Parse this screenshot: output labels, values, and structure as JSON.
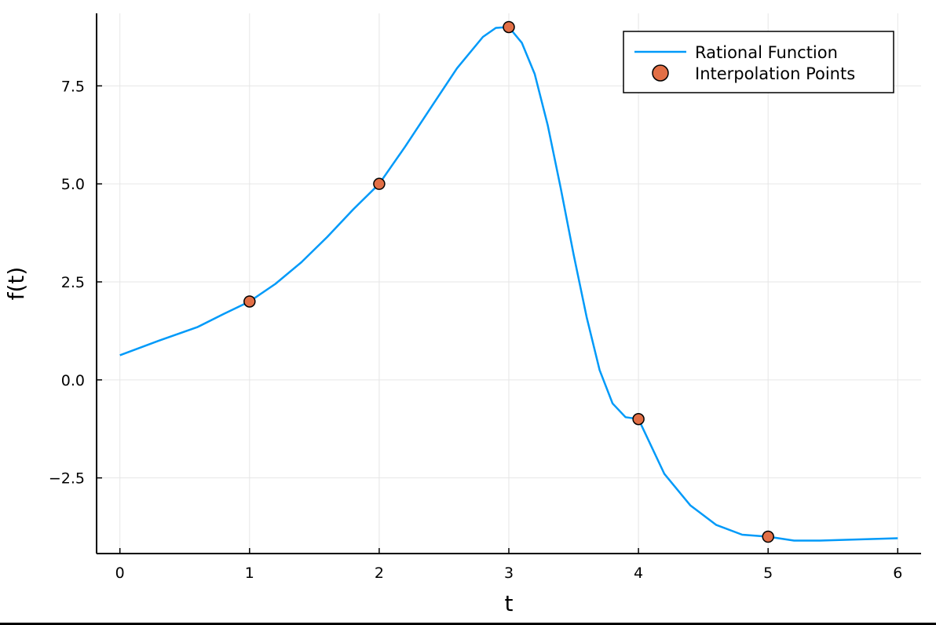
{
  "chart_data": {
    "type": "line",
    "title": "",
    "xlabel": "t",
    "ylabel": "f(t)",
    "xlim": [
      -0.18,
      6.18
    ],
    "ylim": [
      -4.43,
      9.35
    ],
    "grid": true,
    "legend_position": "top-right",
    "x_ticks": [
      0,
      1,
      2,
      3,
      4,
      5,
      6
    ],
    "x_tick_labels": [
      "0",
      "1",
      "2",
      "3",
      "4",
      "5",
      "6"
    ],
    "y_ticks": [
      -2.5,
      0.0,
      2.5,
      5.0,
      7.5
    ],
    "y_tick_labels": [
      "−2.5",
      "0.0",
      "2.5",
      "5.0",
      "7.5"
    ],
    "series": [
      {
        "name": "Rational Function",
        "kind": "line",
        "color": "#009af9",
        "x": [
          0.0,
          0.3,
          0.6,
          0.8,
          1.0,
          1.2,
          1.4,
          1.6,
          1.8,
          2.0,
          2.2,
          2.4,
          2.6,
          2.8,
          2.9,
          3.0,
          3.1,
          3.2,
          3.3,
          3.4,
          3.5,
          3.6,
          3.7,
          3.8,
          3.9,
          4.0,
          4.2,
          4.4,
          4.6,
          4.8,
          5.0,
          5.2,
          5.4,
          5.6,
          5.8,
          6.0
        ],
        "y": [
          0.63,
          1.0,
          1.35,
          1.68,
          2.0,
          2.45,
          3.0,
          3.65,
          4.35,
          5.0,
          5.95,
          6.95,
          7.95,
          8.75,
          8.98,
          9.0,
          8.6,
          7.8,
          6.5,
          4.9,
          3.2,
          1.6,
          0.25,
          -0.6,
          -0.95,
          -1.0,
          -2.4,
          -3.2,
          -3.7,
          -3.95,
          -4.0,
          -4.1,
          -4.1,
          -4.08,
          -4.06,
          -4.04
        ]
      },
      {
        "name": "Interpolation Points",
        "kind": "scatter",
        "color": "#e26f46",
        "x": [
          1,
          2,
          3,
          4,
          5
        ],
        "y": [
          2,
          5,
          9,
          -1,
          -4
        ]
      }
    ]
  }
}
